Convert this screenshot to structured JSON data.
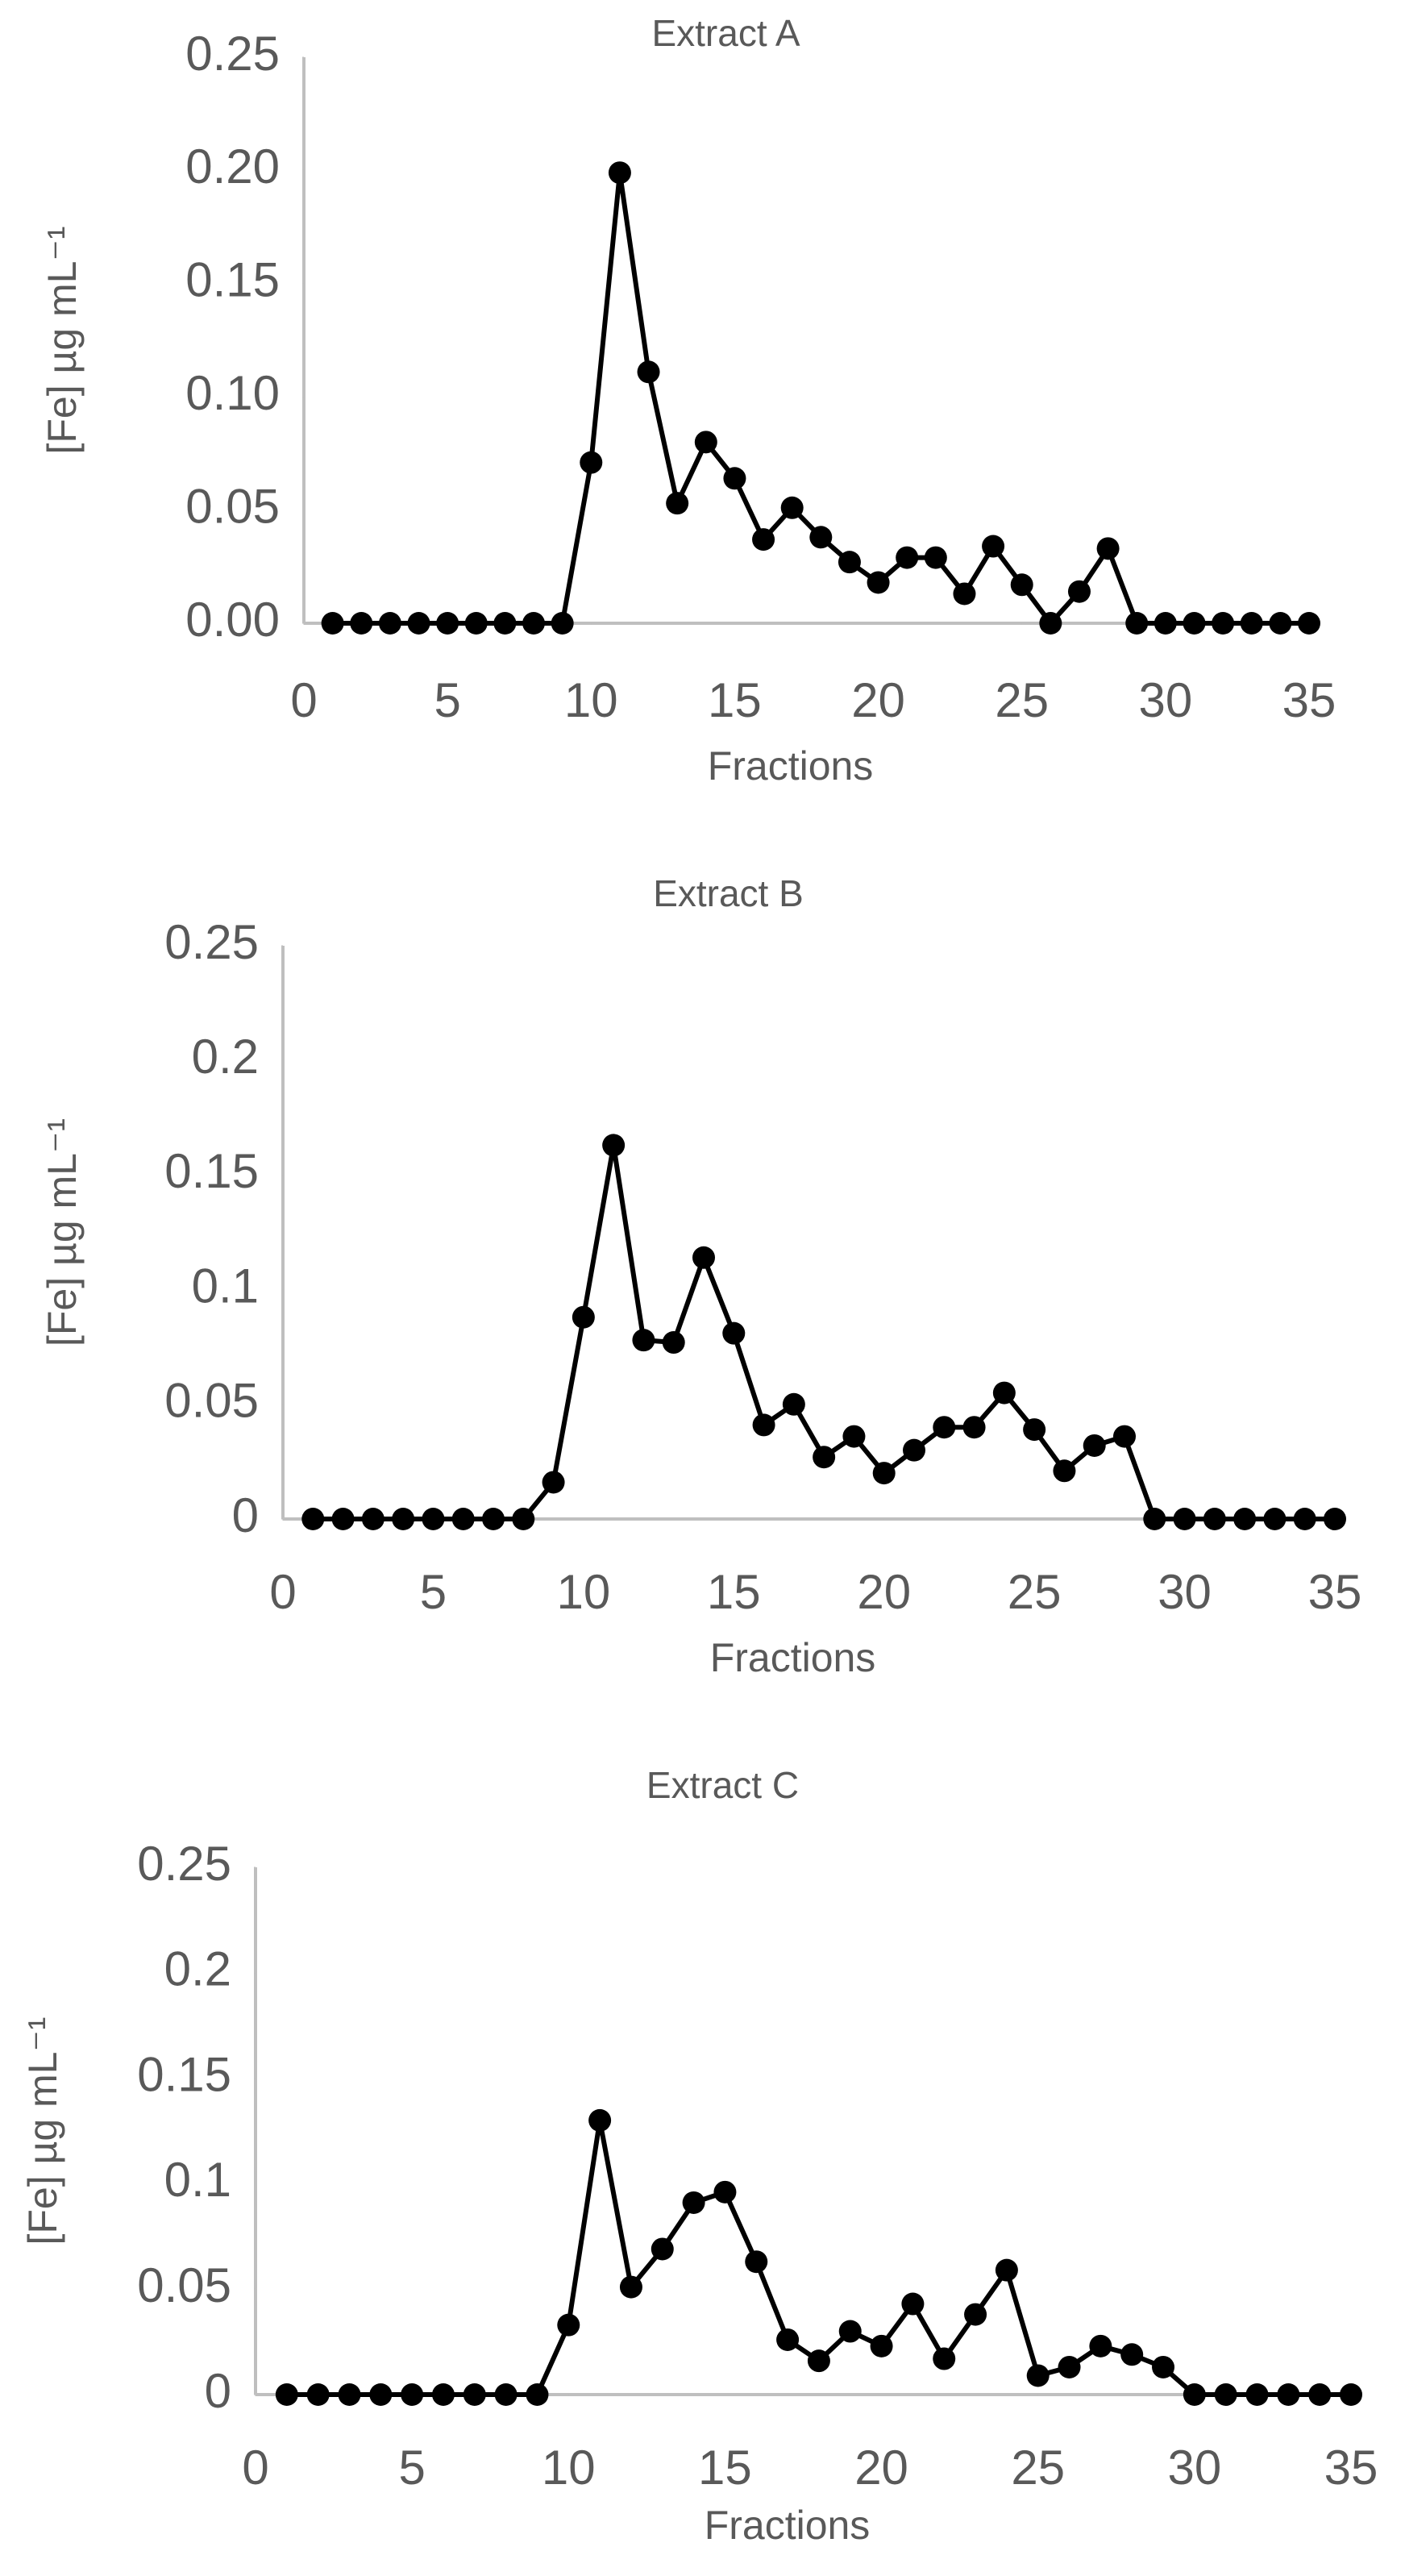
{
  "chart_data": [
    {
      "type": "line",
      "title": "Extract A",
      "xlabel": "Fractions",
      "ylabel": "[Fe] µg mL⁻¹",
      "color": "#000000",
      "x": [
        1,
        2,
        3,
        4,
        5,
        6,
        7,
        8,
        9,
        10,
        11,
        12,
        13,
        14,
        15,
        16,
        17,
        18,
        19,
        20,
        21,
        22,
        23,
        24,
        25,
        26,
        27,
        28,
        29,
        30,
        31,
        32,
        33,
        34,
        35
      ],
      "values": [
        0,
        0,
        0,
        0,
        0,
        0,
        0,
        0,
        0,
        0.071,
        0.199,
        0.111,
        0.053,
        0.08,
        0.064,
        0.037,
        0.051,
        0.038,
        0.027,
        0.018,
        0.029,
        0.029,
        0.013,
        0.034,
        0.017,
        0,
        0.014,
        0.033,
        0,
        0,
        0,
        0,
        0,
        0,
        0
      ],
      "xlim": [
        0,
        35
      ],
      "xticks": [
        0,
        5,
        10,
        15,
        20,
        25,
        30,
        35
      ],
      "ylim": [
        0,
        0.25
      ],
      "yticks": [
        {
          "value": 0,
          "label": "0.00"
        },
        {
          "value": 0.05,
          "label": "0.05"
        },
        {
          "value": 0.1,
          "label": "0.10"
        },
        {
          "value": 0.15,
          "label": "0.15"
        },
        {
          "value": 0.2,
          "label": "0.20"
        },
        {
          "value": 0.25,
          "label": "0.25"
        }
      ]
    },
    {
      "type": "line",
      "title": "Extract B",
      "xlabel": "Fractions",
      "ylabel": "[Fe] µg mL⁻¹",
      "color": "#000000",
      "x": [
        1,
        2,
        3,
        4,
        5,
        6,
        7,
        8,
        9,
        10,
        11,
        12,
        13,
        14,
        15,
        16,
        17,
        18,
        19,
        20,
        21,
        22,
        23,
        24,
        25,
        26,
        27,
        28,
        29,
        30,
        31,
        32,
        33,
        34,
        35
      ],
      "values": [
        0,
        0,
        0,
        0,
        0,
        0,
        0,
        0,
        0.016,
        0.088,
        0.163,
        0.078,
        0.077,
        0.114,
        0.081,
        0.041,
        0.05,
        0.027,
        0.036,
        0.02,
        0.03,
        0.04,
        0.04,
        0.055,
        0.039,
        0.021,
        0.032,
        0.036,
        0,
        0,
        0,
        0,
        0,
        0,
        0
      ],
      "xlim": [
        0,
        35
      ],
      "xticks": [
        0,
        5,
        10,
        15,
        20,
        25,
        30,
        35
      ],
      "ylim": [
        0,
        0.25
      ],
      "yticks": [
        0,
        0.05,
        0.1,
        0.15,
        0.2,
        0.25
      ]
    },
    {
      "type": "line",
      "title": "Extract C",
      "xlabel": "Fractions",
      "ylabel": "[Fe] µg mL⁻¹",
      "color": "#000000",
      "x": [
        1,
        2,
        3,
        4,
        5,
        6,
        7,
        8,
        9,
        10,
        11,
        12,
        13,
        14,
        15,
        16,
        17,
        18,
        19,
        20,
        21,
        22,
        23,
        24,
        25,
        26,
        27,
        28,
        29,
        30,
        31,
        32,
        33,
        34,
        35
      ],
      "values": [
        0,
        0,
        0,
        0,
        0,
        0,
        0,
        0,
        0,
        0.033,
        0.13,
        0.051,
        0.069,
        0.091,
        0.096,
        0.063,
        0.026,
        0.016,
        0.03,
        0.023,
        0.043,
        0.017,
        0.038,
        0.059,
        0.009,
        0.013,
        0.023,
        0.019,
        0.013,
        0,
        0,
        0,
        0,
        0,
        0
      ],
      "xlim": [
        0,
        35
      ],
      "xticks": [
        0,
        5,
        10,
        15,
        20,
        25,
        30,
        35
      ],
      "ylim": [
        0,
        0.25
      ],
      "yticks": [
        0,
        0.05,
        0.1,
        0.15,
        0.2,
        0.25
      ]
    }
  ]
}
